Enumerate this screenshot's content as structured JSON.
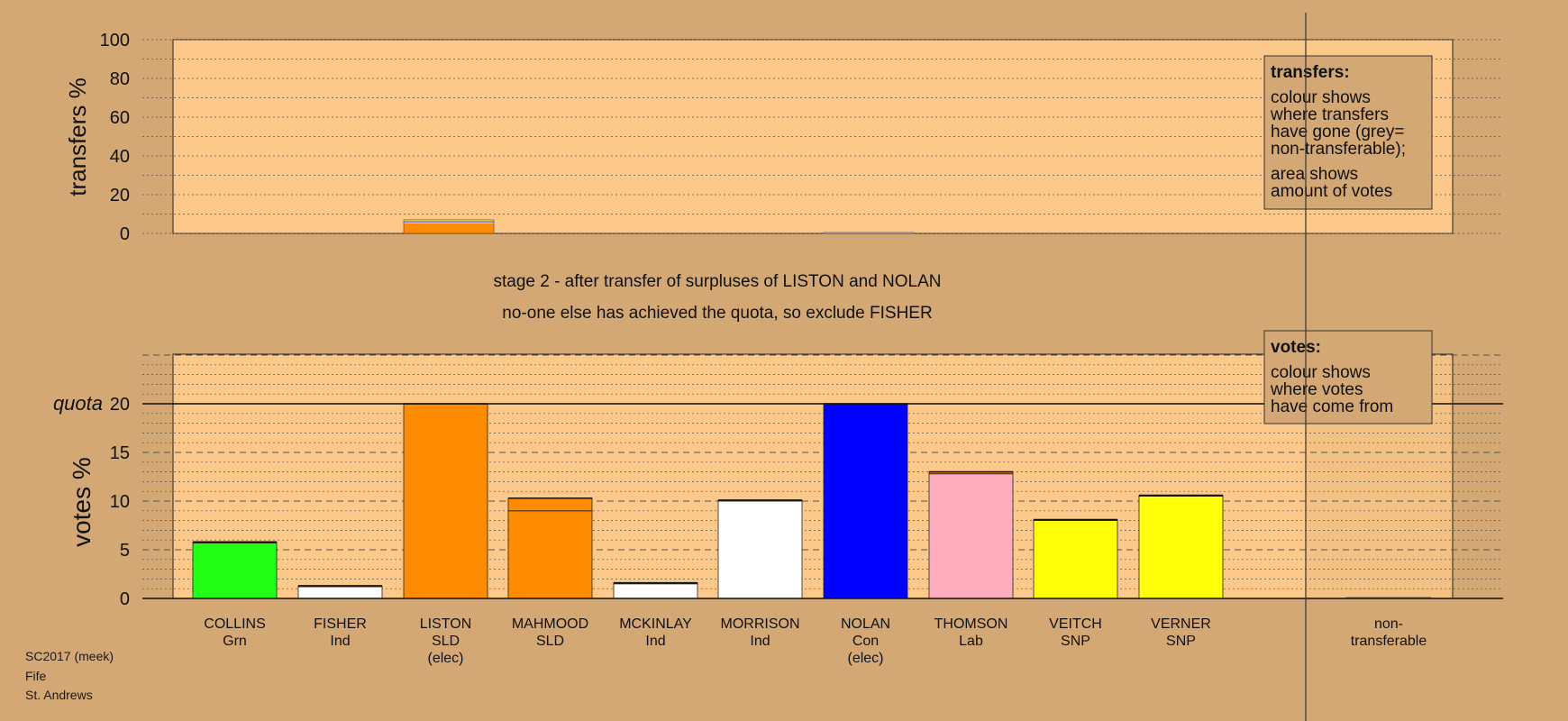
{
  "colors": {
    "background": "#d4a874",
    "panel": "#fdc98a",
    "grid": "#555555",
    "non_transferable": "#bdbdbd"
  },
  "caption": {
    "line1": "stage 2 - after transfer of surpluses of LISTON and NOLAN",
    "line2": "no-one else has achieved the quota, so exclude FISHER"
  },
  "footer": [
    "SC2017 (meek)",
    "Fife",
    "St. Andrews"
  ],
  "chart_data": [
    {
      "type": "bar",
      "id": "transfers",
      "ylabel": "transfers %",
      "ylim": [
        0,
        100
      ],
      "yticks": [
        0,
        20,
        40,
        60,
        80,
        100
      ],
      "legend": {
        "title": "transfers:",
        "lines_a": [
          "colour shows",
          "where transfers",
          "have gone (grey=",
          "non-transferable);"
        ],
        "lines_b": [
          "area shows",
          "amount of votes"
        ]
      },
      "bars": [
        {
          "category": "LISTON",
          "value": 7,
          "segments": [
            {
              "value": 5.2,
              "color": "#ff8c00"
            },
            {
              "value": 0.6,
              "color": "#ffaec0"
            },
            {
              "value": 0.5,
              "color": "#3355ff"
            },
            {
              "value": 0.5,
              "color": "#ffff00"
            }
          ]
        },
        {
          "category": "NOLAN",
          "value": 0.5,
          "segments": [
            {
              "value": 0.5,
              "color": "#ffffff"
            }
          ]
        }
      ]
    },
    {
      "type": "bar",
      "id": "votes",
      "ylabel": "votes %",
      "quota_label": "quota",
      "quota": 20,
      "ylim": [
        0,
        25
      ],
      "yticks": [
        0,
        5,
        10,
        15,
        20
      ],
      "legend": {
        "title": "votes:",
        "lines": [
          "colour shows",
          "where votes",
          "have come from"
        ]
      },
      "categories": [
        {
          "name": "COLLINS",
          "party": "Grn",
          "note": ""
        },
        {
          "name": "FISHER",
          "party": "Ind",
          "note": ""
        },
        {
          "name": "LISTON",
          "party": "SLD",
          "note": "(elec)"
        },
        {
          "name": "MAHMOOD",
          "party": "SLD",
          "note": ""
        },
        {
          "name": "MCKINLAY",
          "party": "Ind",
          "note": ""
        },
        {
          "name": "MORRISON",
          "party": "Ind",
          "note": ""
        },
        {
          "name": "NOLAN",
          "party": "Con",
          "note": "(elec)"
        },
        {
          "name": "THOMSON",
          "party": "Lab",
          "note": ""
        },
        {
          "name": "VEITCH",
          "party": "SNP",
          "note": ""
        },
        {
          "name": "VERNER",
          "party": "SNP",
          "note": ""
        }
      ],
      "non_transferable": {
        "label_line1": "non-",
        "label_line2": "transferable",
        "value": 0.1
      },
      "bars": [
        {
          "category": "COLLINS",
          "total": 5.8,
          "segments": [
            {
              "value": 5.7,
              "color": "#22ff14"
            },
            {
              "value": 0.1,
              "color": "#ff8c00"
            }
          ]
        },
        {
          "category": "FISHER",
          "total": 1.3,
          "segments": [
            {
              "value": 1.2,
              "color": "#ffffff"
            },
            {
              "value": 0.1,
              "color": "#ff8c00"
            }
          ]
        },
        {
          "category": "LISTON",
          "total": 20,
          "segments": [
            {
              "value": 20,
              "color": "#ff8c00"
            }
          ]
        },
        {
          "category": "MAHMOOD",
          "total": 10.3,
          "segments": [
            {
              "value": 9.0,
              "color": "#ff8c00"
            },
            {
              "value": 1.3,
              "color": "#ff8c00"
            }
          ]
        },
        {
          "category": "MCKINLAY",
          "total": 1.6,
          "segments": [
            {
              "value": 1.5,
              "color": "#ffffff"
            },
            {
              "value": 0.1,
              "color": "#ff8c00"
            }
          ]
        },
        {
          "category": "MORRISON",
          "total": 10.1,
          "segments": [
            {
              "value": 10.0,
              "color": "#ffffff"
            },
            {
              "value": 0.1,
              "color": "#ff8c00"
            }
          ]
        },
        {
          "category": "NOLAN",
          "total": 20,
          "segments": [
            {
              "value": 20,
              "color": "#0000ff"
            }
          ]
        },
        {
          "category": "THOMSON",
          "total": 13.0,
          "segments": [
            {
              "value": 12.8,
              "color": "#ffaec0"
            },
            {
              "value": 0.2,
              "color": "#ff8c00"
            }
          ]
        },
        {
          "category": "VEITCH",
          "total": 8.1,
          "segments": [
            {
              "value": 8.0,
              "color": "#ffff0a"
            },
            {
              "value": 0.1,
              "color": "#ff8c00"
            }
          ]
        },
        {
          "category": "VERNER",
          "total": 10.6,
          "segments": [
            {
              "value": 10.5,
              "color": "#ffff0a"
            },
            {
              "value": 0.1,
              "color": "#ff8c00"
            }
          ]
        }
      ]
    }
  ]
}
